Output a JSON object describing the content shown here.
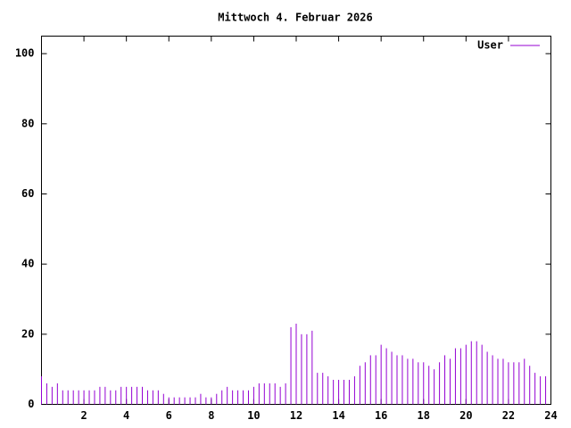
{
  "chart_data": {
    "type": "impulses",
    "title": "Mittwoch 4. Februar 2026",
    "xlim": [
      0,
      24
    ],
    "xticks": [
      2,
      4,
      6,
      8,
      10,
      12,
      14,
      16,
      18,
      20,
      22,
      24
    ],
    "ylim": [
      0,
      105
    ],
    "yticks": [
      0,
      20,
      40,
      60,
      80,
      100
    ],
    "legend": "top-right",
    "x": [
      0,
      0.25,
      0.5,
      0.75,
      1,
      1.25,
      1.5,
      1.75,
      2,
      2.25,
      2.5,
      2.75,
      3,
      3.25,
      3.5,
      3.75,
      4,
      4.25,
      4.5,
      4.75,
      5,
      5.25,
      5.5,
      5.75,
      6,
      6.25,
      6.5,
      6.75,
      7,
      7.25,
      7.5,
      7.75,
      8,
      8.25,
      8.5,
      8.75,
      9,
      9.25,
      9.5,
      9.75,
      10,
      10.25,
      10.5,
      10.75,
      11,
      11.25,
      11.5,
      11.75,
      12,
      12.25,
      12.5,
      12.75,
      13,
      13.25,
      13.5,
      13.75,
      14,
      14.25,
      14.5,
      14.75,
      15,
      15.25,
      15.5,
      15.75,
      16,
      16.25,
      16.5,
      16.75,
      17,
      17.25,
      17.5,
      17.75,
      18,
      18.25,
      18.5,
      18.75,
      19,
      19.25,
      19.5,
      19.75,
      20,
      20.25,
      20.5,
      20.75,
      21,
      21.25,
      21.5,
      21.75,
      22,
      22.25,
      22.5,
      22.75,
      23,
      23.25,
      23.5,
      23.75
    ],
    "series": [
      {
        "name": "User",
        "color": "#9400d3",
        "values": [
          8,
          6,
          5,
          6,
          4,
          4,
          4,
          4,
          4,
          4,
          4,
          5,
          5,
          4,
          4,
          5,
          5,
          5,
          5,
          5,
          4,
          4,
          4,
          3,
          2,
          2,
          2,
          2,
          2,
          2,
          3,
          2,
          2,
          3,
          4,
          5,
          4,
          4,
          4,
          4,
          5,
          6,
          6,
          6,
          6,
          5,
          6,
          22,
          23,
          20,
          20,
          21,
          9,
          9,
          8,
          7,
          7,
          7,
          7,
          8,
          11,
          12,
          14,
          14,
          17,
          16,
          15,
          14,
          14,
          13,
          13,
          12,
          12,
          11,
          10,
          12,
          14,
          13,
          16,
          16,
          17,
          18,
          18,
          17,
          15,
          14,
          13,
          13,
          12,
          12,
          12,
          13,
          11,
          9,
          8,
          8
        ]
      }
    ]
  }
}
